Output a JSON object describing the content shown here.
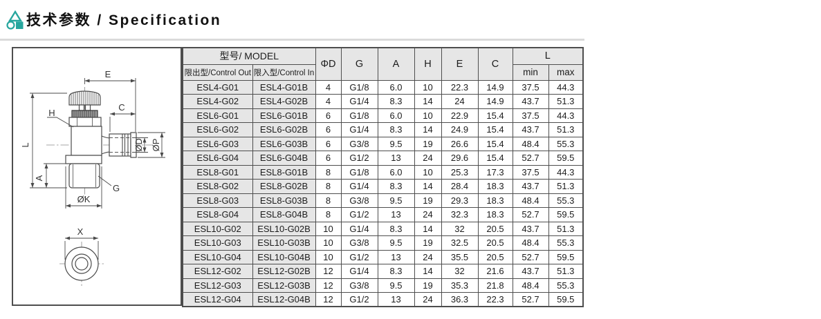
{
  "header": {
    "title": "技术参数 / Specification",
    "icon": "triangle-circle-square-logo",
    "accent_color": "#27a69e"
  },
  "table": {
    "model_header": "型号/ MODEL",
    "control_out_label": "限出型/Control Out",
    "control_in_label": "限入型/Control In",
    "dim_columns": [
      "ΦD",
      "G",
      "A",
      "H",
      "E",
      "C"
    ],
    "l_header": "L",
    "l_min_label": "min",
    "l_max_label": "max",
    "rows": [
      [
        "ESL4-G01",
        "ESL4-G01B",
        "4",
        "G1/8",
        "6.0",
        "10",
        "22.3",
        "14.9",
        "37.5",
        "44.3"
      ],
      [
        "ESL4-G02",
        "ESL4-G02B",
        "4",
        "G1/4",
        "8.3",
        "14",
        "24",
        "14.9",
        "43.7",
        "51.3"
      ],
      [
        "ESL6-G01",
        "ESL6-G01B",
        "6",
        "G1/8",
        "6.0",
        "10",
        "22.9",
        "15.4",
        "37.5",
        "44.3"
      ],
      [
        "ESL6-G02",
        "ESL6-G02B",
        "6",
        "G1/4",
        "8.3",
        "14",
        "24.9",
        "15.4",
        "43.7",
        "51.3"
      ],
      [
        "ESL6-G03",
        "ESL6-G03B",
        "6",
        "G3/8",
        "9.5",
        "19",
        "26.6",
        "15.4",
        "48.4",
        "55.3"
      ],
      [
        "ESL6-G04",
        "ESL6-G04B",
        "6",
        "G1/2",
        "13",
        "24",
        "29.6",
        "15.4",
        "52.7",
        "59.5"
      ],
      [
        "ESL8-G01",
        "ESL8-G01B",
        "8",
        "G1/8",
        "6.0",
        "10",
        "25.3",
        "17.3",
        "37.5",
        "44.3"
      ],
      [
        "ESL8-G02",
        "ESL8-G02B",
        "8",
        "G1/4",
        "8.3",
        "14",
        "28.4",
        "18.3",
        "43.7",
        "51.3"
      ],
      [
        "ESL8-G03",
        "ESL8-G03B",
        "8",
        "G3/8",
        "9.5",
        "19",
        "29.3",
        "18.3",
        "48.4",
        "55.3"
      ],
      [
        "ESL8-G04",
        "ESL8-G04B",
        "8",
        "G1/2",
        "13",
        "24",
        "32.3",
        "18.3",
        "52.7",
        "59.5"
      ],
      [
        "ESL10-G02",
        "ESL10-G02B",
        "10",
        "G1/4",
        "8.3",
        "14",
        "32",
        "20.5",
        "43.7",
        "51.3"
      ],
      [
        "ESL10-G03",
        "ESL10-G03B",
        "10",
        "G3/8",
        "9.5",
        "19",
        "32.5",
        "20.5",
        "48.4",
        "55.3"
      ],
      [
        "ESL10-G04",
        "ESL10-G04B",
        "10",
        "G1/2",
        "13",
        "24",
        "35.5",
        "20.5",
        "52.7",
        "59.5"
      ],
      [
        "ESL12-G02",
        "ESL12-G02B",
        "12",
        "G1/4",
        "8.3",
        "14",
        "32",
        "21.6",
        "43.7",
        "51.3"
      ],
      [
        "ESL12-G03",
        "ESL12-G03B",
        "12",
        "G3/8",
        "9.5",
        "19",
        "35.3",
        "21.8",
        "48.4",
        "55.3"
      ],
      [
        "ESL12-G04",
        "ESL12-G04B",
        "12",
        "G1/2",
        "13",
        "24",
        "36.3",
        "22.3",
        "52.7",
        "59.5"
      ]
    ]
  },
  "drawing": {
    "labels": {
      "E": "E",
      "C": "C",
      "H": "H",
      "L": "L",
      "A": "A",
      "G": "G",
      "OK": "ØK",
      "OD": "ØD",
      "OP": "ØP",
      "X": "X"
    }
  },
  "colors": {
    "accent": "#27a69e",
    "table_border": "#4d4d4d",
    "header_cell_bg": "#e6e6e6",
    "drawing_line": "#4a4a4a"
  }
}
